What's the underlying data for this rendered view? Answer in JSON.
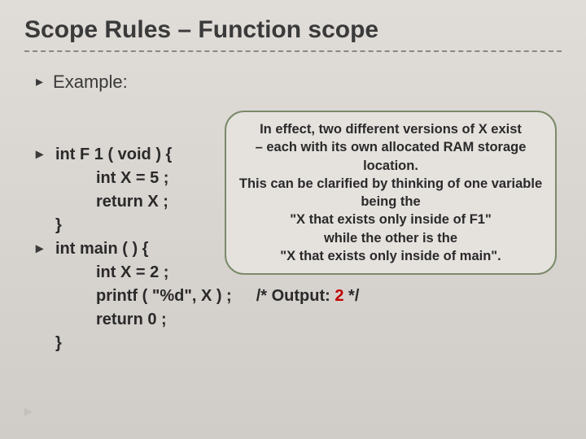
{
  "colors": {
    "background_top": "#e0dcd8",
    "background_bottom": "#d0ccc8",
    "title_text": "#3a3a3a",
    "body_text": "#2a2a2a",
    "divider": "#888888",
    "callout_border": "#7a8a68",
    "callout_bg": "#e5e2de",
    "accent_red": "#c00000",
    "footer_marker": "#c4c0bc"
  },
  "typography": {
    "title_fontsize_pt": 24,
    "body_fontsize_pt": 16,
    "code_fontsize_pt": 15,
    "callout_fontsize_pt": 13,
    "font_family": "Arial",
    "title_weight": "bold",
    "code_weight": "bold",
    "callout_weight": "bold"
  },
  "title": "Scope Rules – Function scope",
  "example_label": "Example:",
  "callout": {
    "line1": "In effect, two different versions of X exist",
    "line2": "– each with its own allocated RAM storage location.",
    "line3": "This can be clarified by thinking of one variable being the",
    "line4": "\"X that exists only inside of F1\"",
    "line5": "while the other is the",
    "line6": "\"X that exists only inside of main\"."
  },
  "code": {
    "f1_sig": "int F 1 ( void ) {",
    "f1_decl": "int X = 5 ;",
    "f1_ret": "return X ;",
    "f1_close": "}",
    "main_sig": "int main ( ) {",
    "main_decl": "int X = 2 ;",
    "main_printf": "printf ( \"%d\", X ) ;",
    "main_comment_prefix": "/* Output:   ",
    "main_comment_value": "2",
    "main_comment_suffix": " */",
    "main_ret": "return 0 ;",
    "main_close": "}"
  }
}
